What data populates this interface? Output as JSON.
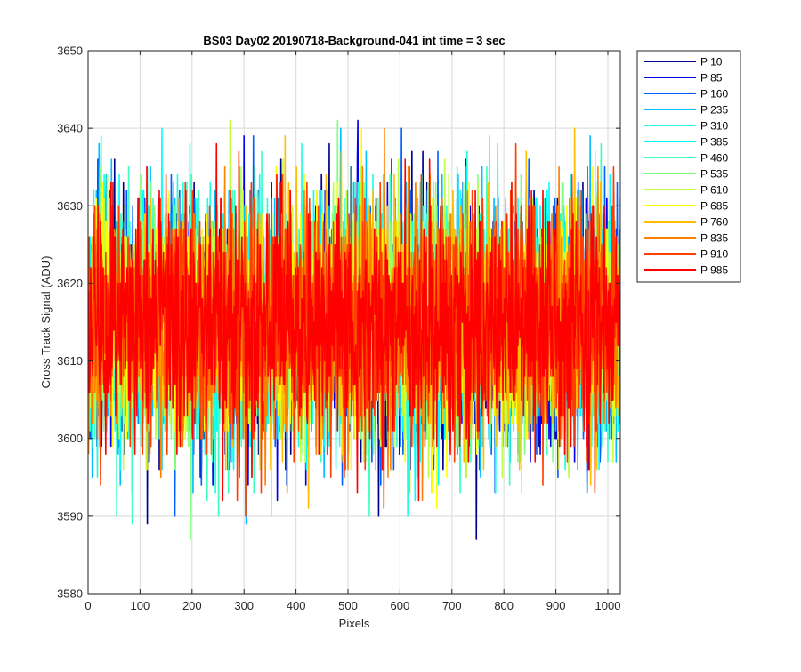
{
  "chart_data": {
    "type": "line",
    "title": "BS03 Day02 20190718-Background-041 int time = 3 sec",
    "xlabel": "Pixels",
    "ylabel": "Cross Track Signal (ADU)",
    "xlim": [
      0,
      1024
    ],
    "ylim": [
      3580,
      3650
    ],
    "xticks": [
      0,
      100,
      200,
      300,
      400,
      500,
      600,
      700,
      800,
      900,
      1000
    ],
    "yticks": [
      3580,
      3590,
      3600,
      3610,
      3620,
      3630,
      3640,
      3650
    ],
    "grid": true,
    "legend_position": "outside-top-right",
    "approx_mean": 3615,
    "approx_std": 7.5,
    "num_points_per_series": 1024,
    "series": [
      {
        "name": "P 10",
        "color": "#00008F"
      },
      {
        "name": "P 85",
        "color": "#0000EF"
      },
      {
        "name": "P 160",
        "color": "#005FFF"
      },
      {
        "name": "P 235",
        "color": "#00BFFF"
      },
      {
        "name": "P 310",
        "color": "#1FFFDF"
      },
      {
        "name": "P 385",
        "color": "#00FFFF"
      },
      {
        "name": "P 460",
        "color": "#3FFFBF"
      },
      {
        "name": "P 535",
        "color": "#7FFF7F"
      },
      {
        "name": "P 610",
        "color": "#BFFF3F"
      },
      {
        "name": "P 685",
        "color": "#FFFF00"
      },
      {
        "name": "P 760",
        "color": "#FFBF00"
      },
      {
        "name": "P 835",
        "color": "#FF7F00"
      },
      {
        "name": "P 910",
        "color": "#FF3F00"
      },
      {
        "name": "P 985",
        "color": "#FF0000"
      }
    ]
  }
}
